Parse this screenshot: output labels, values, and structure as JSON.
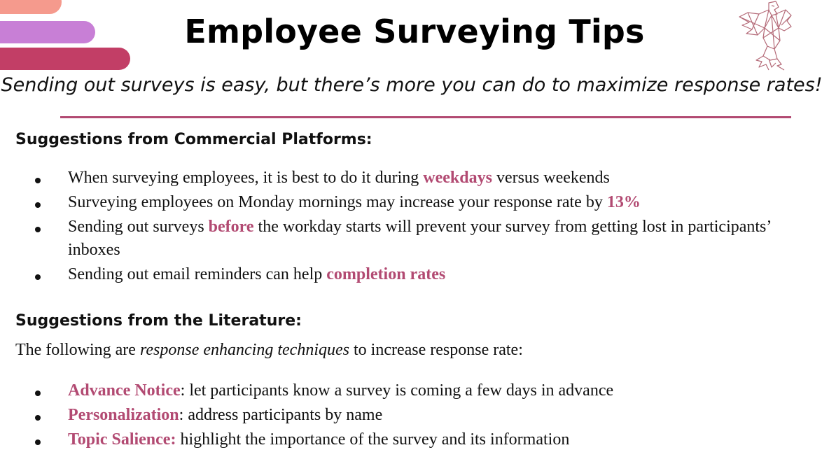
{
  "colors": {
    "accent": "#b24a72",
    "bar_top": "#f59a8d",
    "bar_middle": "#c87fd6",
    "bar_bottom": "#c23e66"
  },
  "logo": {
    "icon": "eagle-icon"
  },
  "header": {
    "title": "Employee Surveying Tips",
    "subtitle": "Sending out surveys is easy, but there’s more you can do to maximize response rates!"
  },
  "section1": {
    "heading": "Suggestions from Commercial Platforms:",
    "items": [
      {
        "pre": "When surveying employees, it is best to do it during ",
        "highlight": "weekdays",
        "post": " versus weekends"
      },
      {
        "pre": "Surveying employees on Monday mornings may increase your response rate by ",
        "highlight": "13%",
        "post": ""
      },
      {
        "pre": "Sending out surveys ",
        "highlight": "before",
        "post": " the workday starts will prevent your survey from getting lost in participants’ inboxes"
      },
      {
        "pre": "Sending out email reminders can help ",
        "highlight": "completion rates",
        "post": ""
      }
    ]
  },
  "section2": {
    "heading": "Suggestions from the Literature:",
    "intro_pre": "The following are ",
    "intro_em": "response enhancing techniques",
    "intro_post": " to increase response rate:",
    "items": [
      {
        "term": "Advance Notice",
        "sep": ":",
        "text": " let participants know a survey is coming a few days in advance"
      },
      {
        "term": "Personalization",
        "sep": ":",
        "text": " address participants by name"
      },
      {
        "term": "Topic Salience:",
        "sep": "",
        "text": " highlight the importance of the survey and its information"
      }
    ]
  }
}
